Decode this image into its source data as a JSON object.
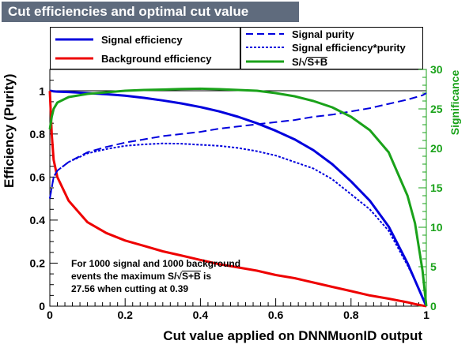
{
  "title": "Cut efficiencies and optimal cut value",
  "legend": {
    "signal_efficiency": "Signal efficiency",
    "background_efficiency": "Background efficiency",
    "signal_purity": "Signal purity",
    "signal_eff_purity": "Signal efficiency*purity",
    "significance": "S/√S+B",
    "significance_prefix": "S/",
    "significance_radicand": "S+B"
  },
  "axes": {
    "xlabel": "Cut value applied on DNNMuonID output",
    "ylabel": "Efficiency (Purity)",
    "y2label": "Significance"
  },
  "annotation": {
    "line1": "For 1000 signal and 1000 background",
    "line2_prefix": "events the maximum S/",
    "line2_radicand": "S+B",
    "line2_suffix": " is",
    "line3": "27.56 when cutting at  0.39"
  },
  "colors": {
    "signal": "#0000dd",
    "background": "#ee0000",
    "significance": "#1aa21a",
    "title_bg": "#5f6b7d"
  },
  "chart_data": {
    "type": "line",
    "x": [
      0,
      0.005,
      0.01,
      0.02,
      0.05,
      0.1,
      0.15,
      0.2,
      0.25,
      0.3,
      0.35,
      0.4,
      0.45,
      0.5,
      0.55,
      0.6,
      0.65,
      0.7,
      0.75,
      0.8,
      0.85,
      0.9,
      0.95,
      0.97,
      0.99,
      1.0
    ],
    "xlim": [
      0,
      1
    ],
    "ylim": [
      0,
      1.1
    ],
    "y2lim": [
      0,
      30
    ],
    "x_ticks": [
      0,
      0.2,
      0.4,
      0.6,
      0.8,
      1
    ],
    "x_tick_labels": [
      "0",
      "0.2",
      "0.4",
      "0.6",
      "0.8",
      "1"
    ],
    "y_ticks": [
      0,
      0.2,
      0.4,
      0.6,
      0.8,
      1
    ],
    "y_tick_labels": [
      "0",
      "0.2",
      "0.4",
      "0.6",
      "0.8",
      "1"
    ],
    "y2_ticks": [
      0,
      5,
      10,
      15,
      20,
      25,
      30
    ],
    "y2_tick_labels": [
      "0",
      "5",
      "10",
      "15",
      "20",
      "25",
      "30"
    ],
    "series": [
      {
        "name": "Signal efficiency",
        "axis": "left",
        "style": "solid",
        "color": "#0000dd",
        "values": [
          1.0,
          1.0,
          0.998,
          0.997,
          0.995,
          0.99,
          0.985,
          0.978,
          0.968,
          0.956,
          0.942,
          0.925,
          0.905,
          0.88,
          0.85,
          0.815,
          0.775,
          0.725,
          0.66,
          0.58,
          0.49,
          0.37,
          0.2,
          0.12,
          0.04,
          0.0
        ]
      },
      {
        "name": "Background efficiency",
        "axis": "left",
        "style": "solid",
        "color": "#ee0000",
        "values": [
          1.0,
          0.8,
          0.68,
          0.6,
          0.49,
          0.39,
          0.34,
          0.305,
          0.28,
          0.255,
          0.235,
          0.215,
          0.195,
          0.18,
          0.165,
          0.145,
          0.13,
          0.11,
          0.09,
          0.07,
          0.05,
          0.035,
          0.018,
          0.01,
          0.003,
          0.0
        ]
      },
      {
        "name": "Signal purity",
        "axis": "left",
        "style": "dashed",
        "color": "#0000dd",
        "values": [
          0.5,
          0.55,
          0.6,
          0.63,
          0.67,
          0.715,
          0.74,
          0.76,
          0.775,
          0.79,
          0.8,
          0.81,
          0.825,
          0.835,
          0.845,
          0.855,
          0.865,
          0.88,
          0.89,
          0.905,
          0.92,
          0.94,
          0.96,
          0.97,
          0.98,
          0.99
        ]
      },
      {
        "name": "Signal efficiency*purity",
        "axis": "left",
        "style": "dotted",
        "color": "#0000dd",
        "values": [
          0.5,
          0.55,
          0.6,
          0.63,
          0.67,
          0.71,
          0.73,
          0.745,
          0.752,
          0.756,
          0.755,
          0.75,
          0.745,
          0.735,
          0.72,
          0.7,
          0.67,
          0.64,
          0.59,
          0.52,
          0.45,
          0.35,
          0.19,
          0.12,
          0.04,
          0.0
        ]
      },
      {
        "name": "S/√S+B",
        "axis": "right",
        "style": "solid",
        "color": "#1aa21a",
        "values": [
          22.4,
          24.0,
          25.0,
          25.8,
          26.5,
          26.9,
          27.1,
          27.3,
          27.4,
          27.45,
          27.52,
          27.56,
          27.5,
          27.4,
          27.3,
          27.0,
          26.6,
          26.0,
          25.2,
          24.0,
          22.3,
          19.5,
          14.0,
          10.5,
          4.5,
          0.0
        ]
      }
    ]
  }
}
